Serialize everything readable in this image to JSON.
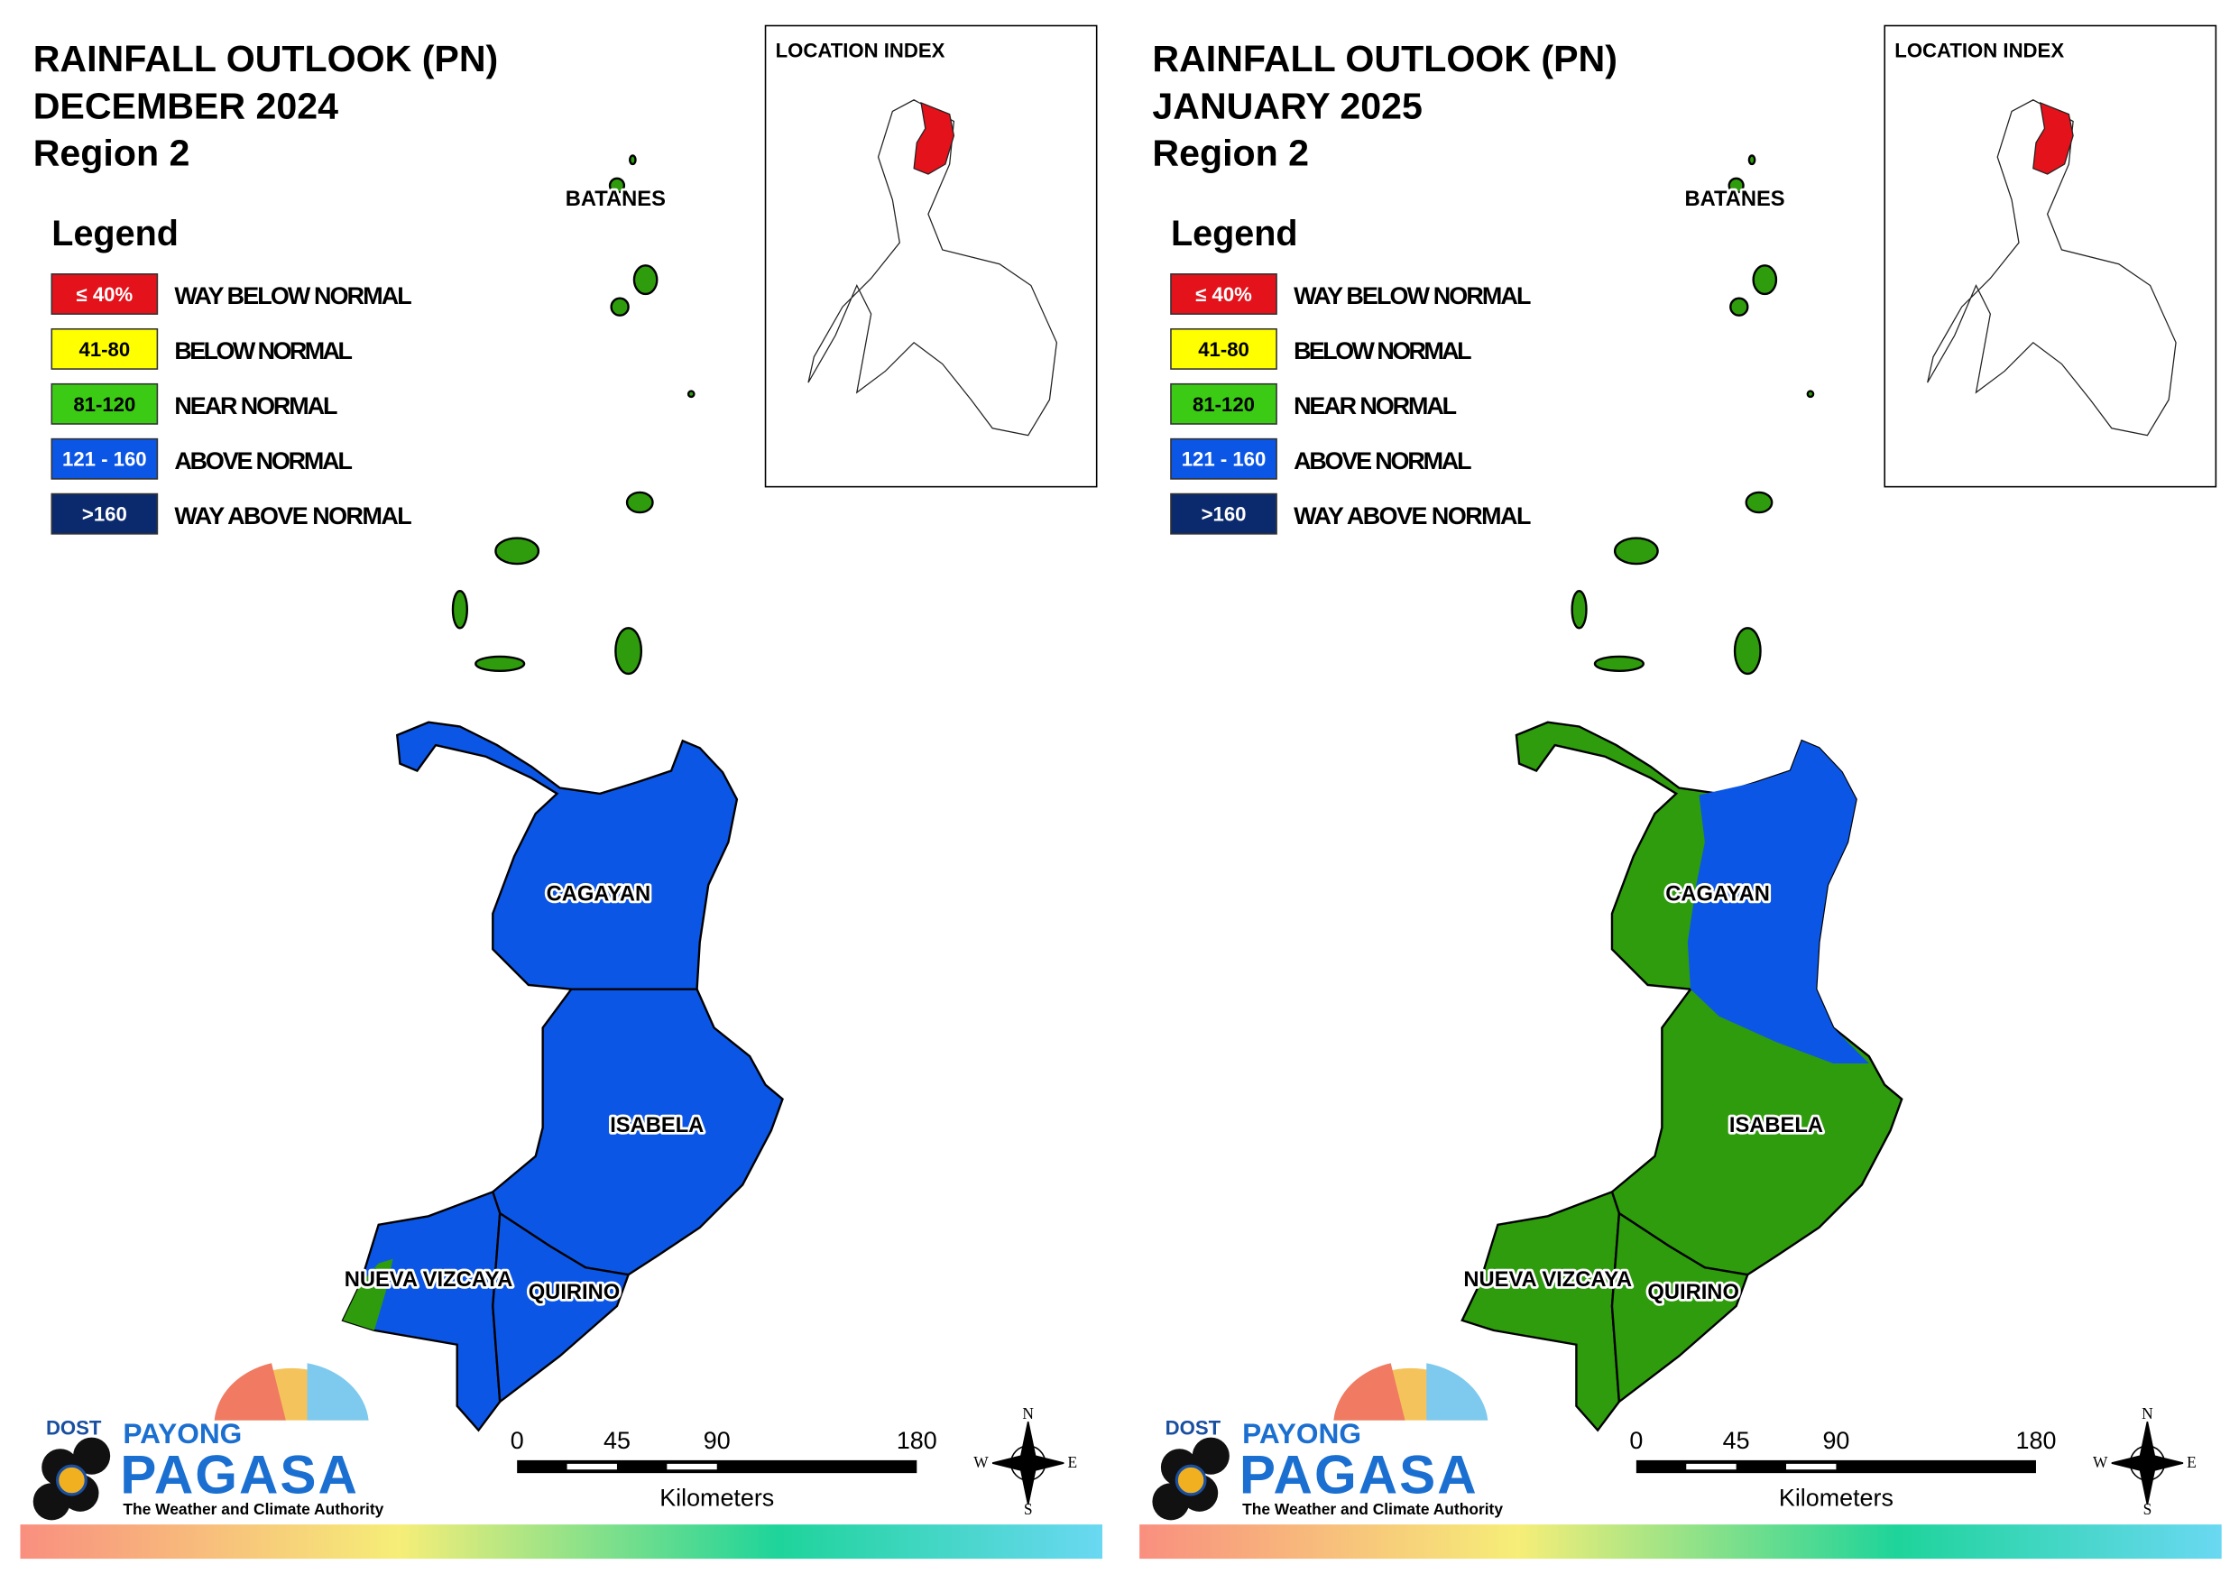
{
  "panels": [
    {
      "title": [
        "RAINFALL OUTLOOK (PN)",
        "DECEMBER 2024",
        "Region 2"
      ],
      "provinces": [
        {
          "name": "CAGAYAN",
          "color": "#0c56e6"
        },
        {
          "name": "ISABELA",
          "color": "#0c56e6"
        },
        {
          "name": "NUEVA VIZCAYA",
          "color": "#0c56e6"
        },
        {
          "name": "QUIRINO",
          "color": "#0c56e6"
        }
      ],
      "islands_color": "#2e9c0c",
      "accent_color": "#2e9c0c"
    },
    {
      "title": [
        "RAINFALL OUTLOOK (PN)",
        "JANUARY 2025",
        "Region 2"
      ],
      "provinces": [
        {
          "name": "CAGAYAN",
          "color": "#2e9c0c"
        },
        {
          "name": "ISABELA",
          "color": "#2e9c0c"
        },
        {
          "name": "NUEVA VIZCAYA",
          "color": "#2e9c0c"
        },
        {
          "name": "QUIRINO",
          "color": "#2e9c0c"
        }
      ],
      "islands_color": "#2e9c0c",
      "accent_color": "#0c56e6"
    }
  ],
  "batanes": "BATANES",
  "legend": {
    "title": "Legend",
    "items": [
      {
        "label": "≤ 40%",
        "text": "WAY BELOW NORMAL",
        "color": "#e4121b",
        "text_color": "#ffffff"
      },
      {
        "label": "41-80",
        "text": "BELOW NORMAL",
        "color": "#ffff00",
        "text_color": "#000000"
      },
      {
        "label": "81-120",
        "text": "NEAR NORMAL",
        "color": "#3ccb14",
        "text_color": "#000000"
      },
      {
        "label": "121 - 160",
        "text": "ABOVE NORMAL",
        "color": "#0c56e6",
        "text_color": "#ffffff"
      },
      {
        "label": ">160",
        "text": "WAY ABOVE NORMAL",
        "color": "#0b2a6e",
        "text_color": "#ffffff"
      }
    ]
  },
  "location_index": "LOCATION INDEX",
  "scale": {
    "ticks": [
      0,
      45,
      90,
      180
    ],
    "unit": "Kilometers"
  },
  "compass": {
    "n": "N",
    "e": "E",
    "s": "S",
    "w": "W"
  },
  "logo": {
    "agency": "DOST",
    "line1": "PAYONG",
    "line2": "PAGASA",
    "tagline": "The Weather and Climate Authority"
  }
}
